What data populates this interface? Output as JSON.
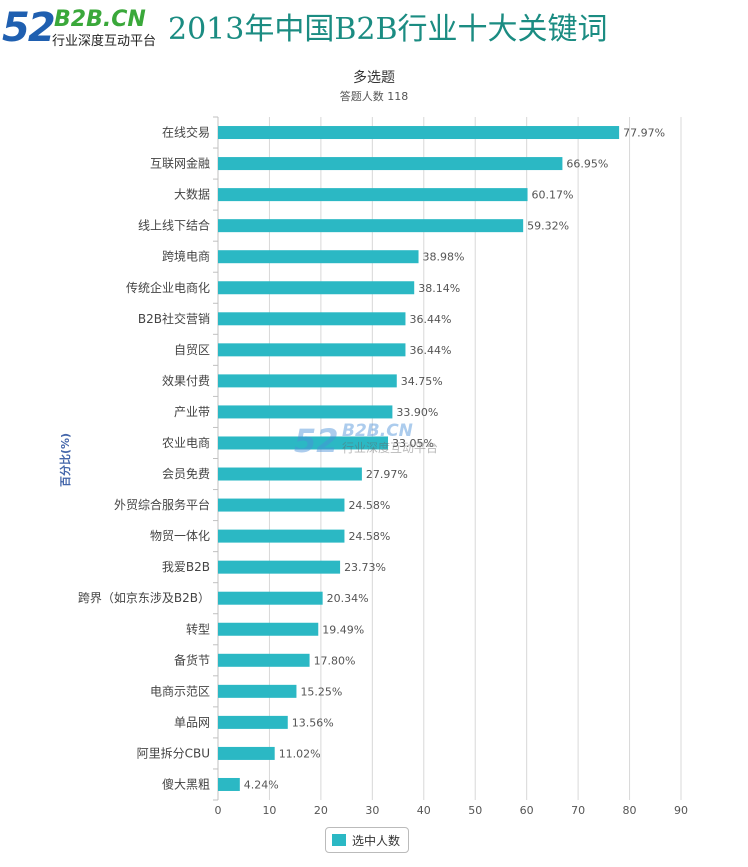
{
  "header": {
    "logo_number": "52",
    "logo_domain": "B2B.CN",
    "logo_slogan": "行业深度互动平台",
    "title": "2013年中国B2B行业十大关键词"
  },
  "watermark": {
    "number": "52",
    "domain": "B2B.CN",
    "slogan": "行业深度互动平台"
  },
  "colors": {
    "bar": "#2bb8c4",
    "title": "#1b8c82",
    "grid": "#d8d8d8"
  },
  "chart_data": {
    "type": "bar",
    "orientation": "horizontal",
    "title": "多选题",
    "subtitle": "答题人数 118",
    "ylabel": "百分比(%)",
    "xlabel": "",
    "xlim": [
      0,
      90
    ],
    "ticks": [
      0,
      10,
      20,
      30,
      40,
      50,
      60,
      70,
      80,
      90
    ],
    "grid": true,
    "legend": "bottom-center",
    "categories": [
      "在线交易",
      "互联网金融",
      "大数据",
      "线上线下结合",
      "跨境电商",
      "传统企业电商化",
      "B2B社交营销",
      "自贸区",
      "效果付费",
      "产业带",
      "农业电商",
      "会员免费",
      "外贸综合服务平台",
      "物贸一体化",
      "我爱B2B",
      "跨界（如京东涉及B2B）",
      "转型",
      "备货节",
      "电商示范区",
      "单品网",
      "阿里拆分CBU",
      "傻大黑粗"
    ],
    "series": [
      {
        "name": "选中人数",
        "values": [
          77.97,
          66.95,
          60.17,
          59.32,
          38.98,
          38.14,
          36.44,
          36.44,
          34.75,
          33.9,
          33.05,
          27.97,
          24.58,
          24.58,
          23.73,
          20.34,
          19.49,
          17.8,
          15.25,
          13.56,
          11.02,
          4.24
        ],
        "labels": [
          "77.97%",
          "66.95%",
          "60.17%",
          "59.32%",
          "38.98%",
          "38.14%",
          "36.44%",
          "36.44%",
          "34.75%",
          "33.90%",
          "33.05%",
          "27.97%",
          "24.58%",
          "24.58%",
          "23.73%",
          "20.34%",
          "19.49%",
          "17.80%",
          "15.25%",
          "13.56%",
          "11.02%",
          "4.24%"
        ]
      }
    ]
  }
}
